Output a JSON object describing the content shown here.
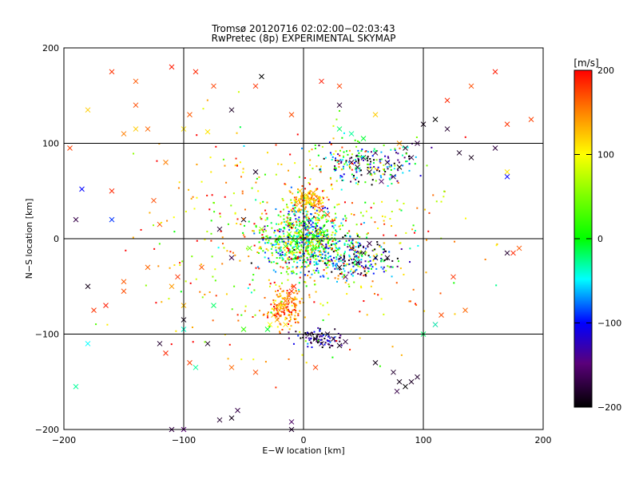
{
  "chart_data": {
    "type": "scatter",
    "title": "Tromsø 20120716 02:02:00−02:03:43",
    "subtitle": "RwPretec (8p) EXPERIMENTAL SKYMAP",
    "xlabel": "E−W location [km]",
    "ylabel": "N−S location [km]",
    "xlim": [
      -200,
      200
    ],
    "ylim": [
      -200,
      200
    ],
    "x_ticks": [
      -200,
      -100,
      0,
      100,
      200
    ],
    "y_ticks": [
      -200,
      -100,
      0,
      100,
      200
    ],
    "x_tick_labels": [
      "−200",
      "−100",
      "0",
      "100",
      "200"
    ],
    "y_tick_labels": [
      "−200",
      "−100",
      "0",
      "100",
      "200"
    ],
    "grid_lines": [
      -100,
      0,
      100
    ],
    "colorbar": {
      "unit": "[m/s]",
      "range": [
        -200,
        200
      ],
      "ticks": [
        200,
        100,
        0,
        -100,
        -200
      ],
      "tick_labels": [
        "200",
        "100",
        "0",
        "−100",
        "−200"
      ]
    },
    "markers": {
      "small": "dot",
      "large": "x"
    },
    "points": [
      [
        5,
        -5,
        30,
        "x"
      ],
      [
        -3,
        8,
        10,
        "x"
      ],
      [
        10,
        3,
        5,
        "x"
      ],
      [
        -8,
        -2,
        20,
        "x"
      ],
      [
        2,
        12,
        40,
        "x"
      ],
      [
        -5,
        -10,
        0,
        "x"
      ],
      [
        12,
        -4,
        -20,
        "x"
      ],
      [
        -12,
        5,
        60,
        "x"
      ],
      [
        6,
        20,
        -40,
        "x"
      ],
      [
        -15,
        -8,
        15,
        "x"
      ],
      [
        3,
        -2,
        25,
        "x"
      ],
      [
        -2,
        3,
        35,
        "x"
      ],
      [
        15,
        10,
        -10,
        "x"
      ],
      [
        -10,
        15,
        50,
        "x"
      ],
      [
        8,
        -12,
        45,
        "x"
      ],
      [
        0,
        45,
        110,
        "x"
      ],
      [
        5,
        40,
        130,
        "x"
      ],
      [
        10,
        35,
        150,
        "x"
      ],
      [
        -3,
        50,
        120,
        "x"
      ],
      [
        8,
        48,
        140,
        "x"
      ],
      [
        12,
        42,
        160,
        "x"
      ],
      [
        -6,
        38,
        135,
        "x"
      ],
      [
        15,
        30,
        180,
        "x"
      ],
      [
        20,
        25,
        170,
        "x"
      ],
      [
        -10,
        -55,
        180,
        "x"
      ],
      [
        -15,
        -65,
        160,
        "x"
      ],
      [
        -20,
        -75,
        140,
        "x"
      ],
      [
        -25,
        -80,
        120,
        "x"
      ],
      [
        -18,
        -70,
        150,
        "x"
      ],
      [
        -12,
        -60,
        170,
        "x"
      ],
      [
        -22,
        -85,
        130,
        "x"
      ],
      [
        -15,
        -90,
        110,
        "x"
      ],
      [
        -8,
        -50,
        190,
        "x"
      ],
      [
        -28,
        -90,
        100,
        "x"
      ],
      [
        40,
        -10,
        -180,
        "x"
      ],
      [
        50,
        -15,
        -190,
        "x"
      ],
      [
        55,
        -5,
        -170,
        "x"
      ],
      [
        60,
        -20,
        -200,
        "x"
      ],
      [
        70,
        -20,
        -185,
        "x"
      ],
      [
        45,
        -25,
        -175,
        "x"
      ],
      [
        35,
        -40,
        -160,
        "x"
      ],
      [
        30,
        -30,
        -190,
        "x"
      ],
      [
        20,
        -100,
        -180,
        "x"
      ],
      [
        25,
        -105,
        -190,
        "x"
      ],
      [
        15,
        -110,
        -170,
        "x"
      ],
      [
        10,
        -105,
        -200,
        "x"
      ],
      [
        5,
        -100,
        -185,
        "x"
      ],
      [
        35,
        -108,
        -175,
        "x"
      ],
      [
        30,
        -112,
        -190,
        "x"
      ],
      [
        75,
        -140,
        -180,
        "x"
      ],
      [
        80,
        -150,
        -190,
        "x"
      ],
      [
        85,
        -155,
        -200,
        "x"
      ],
      [
        90,
        -150,
        -185,
        "x"
      ],
      [
        78,
        -160,
        -170,
        "x"
      ],
      [
        60,
        -130,
        -190,
        "x"
      ],
      [
        95,
        -145,
        -180,
        "x"
      ],
      [
        40,
        80,
        -180,
        "x"
      ],
      [
        50,
        85,
        -190,
        "x"
      ],
      [
        60,
        90,
        -170,
        "x"
      ],
      [
        70,
        80,
        -185,
        "x"
      ],
      [
        80,
        75,
        -200,
        "x"
      ],
      [
        90,
        85,
        -175,
        "x"
      ],
      [
        55,
        70,
        -190,
        "x"
      ],
      [
        45,
        75,
        -185,
        "x"
      ],
      [
        65,
        60,
        -160,
        "x"
      ],
      [
        75,
        65,
        -180,
        "x"
      ],
      [
        85,
        95,
        -190,
        "x"
      ],
      [
        95,
        100,
        -170,
        "x"
      ],
      [
        100,
        120,
        -190,
        "x"
      ],
      [
        110,
        125,
        -200,
        "x"
      ],
      [
        120,
        115,
        -180,
        "x"
      ],
      [
        130,
        90,
        -185,
        "x"
      ],
      [
        140,
        85,
        -190,
        "x"
      ],
      [
        160,
        95,
        -175,
        "x"
      ],
      [
        -40,
        70,
        -185,
        "x"
      ],
      [
        -50,
        20,
        -190,
        "x"
      ],
      [
        -70,
        10,
        -180,
        "x"
      ],
      [
        -60,
        -20,
        -170,
        "x"
      ],
      [
        -120,
        -110,
        -180,
        "x"
      ],
      [
        -100,
        -85,
        -190,
        "x"
      ],
      [
        -80,
        -110,
        -185,
        "x"
      ],
      [
        -60,
        -188,
        -190,
        "x"
      ],
      [
        -55,
        -180,
        -170,
        "x"
      ],
      [
        -10,
        -200,
        -180,
        "x"
      ],
      [
        -180,
        -50,
        -190,
        "x"
      ],
      [
        -190,
        20,
        -170,
        "x"
      ],
      [
        -60,
        135,
        -185,
        "x"
      ],
      [
        -35,
        170,
        -200,
        "x"
      ],
      [
        30,
        140,
        -180,
        "x"
      ],
      [
        -160,
        175,
        180,
        "x"
      ],
      [
        -140,
        140,
        170,
        "x"
      ],
      [
        -130,
        115,
        160,
        "x"
      ],
      [
        -150,
        110,
        150,
        "x"
      ],
      [
        -110,
        180,
        190,
        "x"
      ],
      [
        -90,
        175,
        185,
        "x"
      ],
      [
        -75,
        160,
        175,
        "x"
      ],
      [
        -95,
        130,
        165,
        "x"
      ],
      [
        -40,
        160,
        180,
        "x"
      ],
      [
        -10,
        130,
        170,
        "x"
      ],
      [
        15,
        165,
        190,
        "x"
      ],
      [
        30,
        160,
        175,
        "x"
      ],
      [
        120,
        145,
        185,
        "x"
      ],
      [
        140,
        160,
        170,
        "x"
      ],
      [
        160,
        175,
        190,
        "x"
      ],
      [
        170,
        120,
        180,
        "x"
      ],
      [
        190,
        125,
        175,
        "x"
      ],
      [
        180,
        -10,
        165,
        "x"
      ],
      [
        175,
        -15,
        185,
        "x"
      ],
      [
        115,
        -80,
        170,
        "x"
      ],
      [
        110,
        -90,
        180,
        "x"
      ],
      [
        -130,
        -30,
        160,
        "x"
      ],
      [
        -150,
        -55,
        170,
        "x"
      ],
      [
        -165,
        -70,
        190,
        "x"
      ],
      [
        -175,
        -75,
        180,
        "x"
      ],
      [
        -115,
        -120,
        185,
        "x"
      ],
      [
        -95,
        -130,
        175,
        "x"
      ],
      [
        -60,
        -135,
        160,
        "x"
      ],
      [
        -40,
        -140,
        170,
        "x"
      ],
      [
        -160,
        50,
        185,
        "x"
      ],
      [
        -195,
        95,
        175,
        "x"
      ],
      [
        -120,
        15,
        170,
        "x"
      ],
      [
        -105,
        -40,
        180,
        "x"
      ],
      [
        -85,
        -30,
        165,
        "x"
      ],
      [
        10,
        -135,
        175,
        "x"
      ],
      [
        -140,
        165,
        165,
        "x"
      ],
      [
        -180,
        135,
        120,
        "x"
      ],
      [
        -140,
        115,
        120,
        "x"
      ],
      [
        -100,
        115,
        110,
        "x"
      ],
      [
        -80,
        112,
        110,
        "x"
      ],
      [
        170,
        70,
        110,
        "x"
      ],
      [
        -185,
        52,
        -100,
        "x"
      ],
      [
        -160,
        20,
        -90,
        "x"
      ],
      [
        -190,
        -155,
        -30,
        "x"
      ],
      [
        -100,
        -95,
        -40,
        "x"
      ],
      [
        -90,
        -135,
        -30,
        "x"
      ],
      [
        -180,
        -110,
        -50,
        "x"
      ],
      [
        -75,
        -70,
        -20,
        "x"
      ],
      [
        -50,
        -95,
        20,
        "x"
      ],
      [
        -30,
        -95,
        -10,
        "x"
      ],
      [
        -70,
        -190,
        -180,
        "x"
      ],
      [
        -110,
        -200,
        -170,
        "x"
      ],
      [
        -100,
        -200,
        -150,
        "x"
      ],
      [
        -10,
        -192,
        -160,
        "x"
      ],
      [
        30,
        115,
        -20,
        "x"
      ],
      [
        40,
        110,
        -30,
        "x"
      ],
      [
        50,
        105,
        -10,
        "x"
      ],
      [
        170,
        65,
        -100,
        "x"
      ],
      [
        170,
        -15,
        -180,
        "x"
      ],
      [
        110,
        -90,
        -40,
        "x"
      ],
      [
        100,
        -100,
        -20,
        "x"
      ],
      [
        80,
        100,
        140,
        "x"
      ],
      [
        60,
        130,
        120,
        "x"
      ],
      [
        -115,
        80,
        150,
        "x"
      ],
      [
        -125,
        40,
        170,
        "x"
      ],
      [
        -110,
        -50,
        140,
        "x"
      ],
      [
        -150,
        -45,
        165,
        "x"
      ],
      [
        -100,
        -70,
        130,
        "x"
      ],
      [
        125,
        -40,
        180,
        "x"
      ],
      [
        135,
        -75,
        160,
        "x"
      ],
      [
        45,
        -20,
        -30,
        "x"
      ],
      [
        -35,
        10,
        60,
        "x"
      ],
      [
        -45,
        -10,
        40,
        "x"
      ]
    ]
  }
}
